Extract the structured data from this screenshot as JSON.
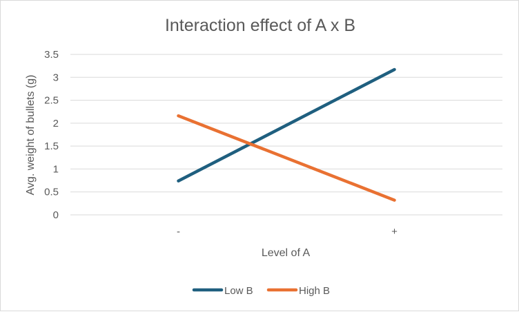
{
  "chart_data": {
    "type": "line",
    "title": "Interaction effect of A x B",
    "xlabel": "Level of A",
    "ylabel": "Avg. weight of bullets (g)",
    "categories": [
      "-",
      "+"
    ],
    "ylim": [
      0,
      3.5
    ],
    "yticks": [
      "0",
      "0.5",
      "1",
      "1.5",
      "2",
      "2.5",
      "3",
      "3.5"
    ],
    "grid": "horizontal",
    "legend_position": "bottom",
    "series": [
      {
        "name": "Low B",
        "values": [
          0.74,
          3.17
        ],
        "color": "#1f5f7f"
      },
      {
        "name": "High B",
        "values": [
          2.16,
          0.32
        ],
        "color": "#e97132"
      }
    ]
  }
}
